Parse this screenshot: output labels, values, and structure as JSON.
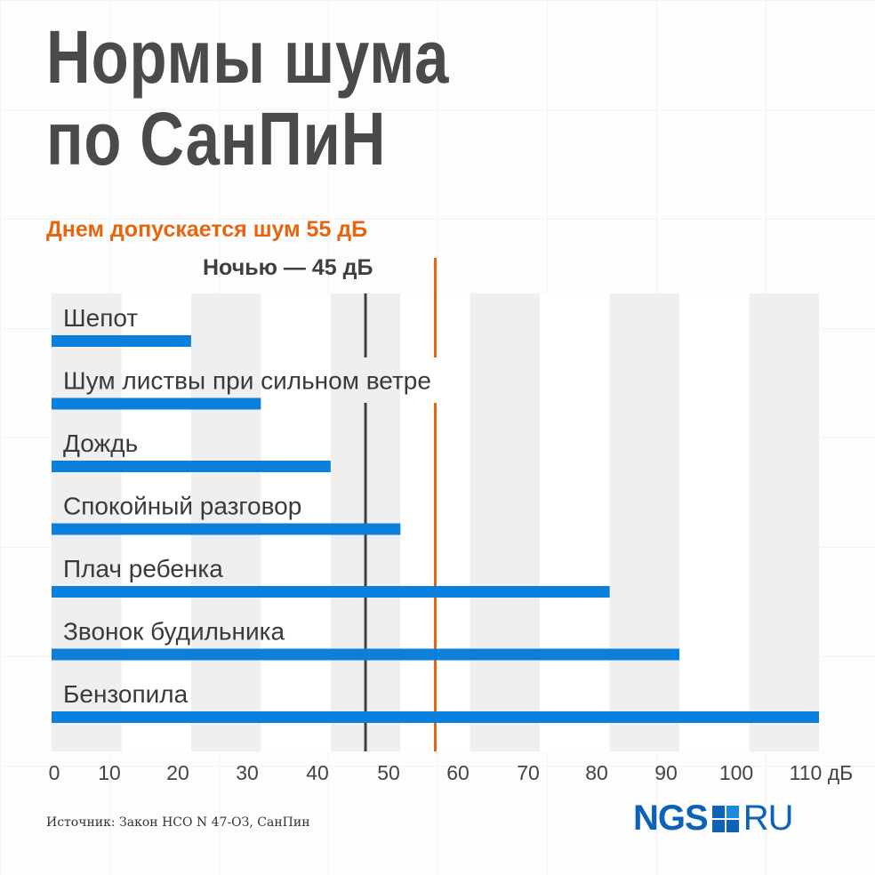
{
  "title_lines": [
    "Нормы шума",
    "по СанПиН"
  ],
  "day_note": "Днем допускается шум 55 дБ",
  "night_note": "Ночью — 45 дБ",
  "source": "Источник: Закон НСО N 47-ОЗ, СанПин",
  "logo": {
    "main": "NGS",
    "suffix": "RU"
  },
  "colors": {
    "bar": "#0a7fdc",
    "day_line": "#e8650f",
    "night_line": "#3f3f3f",
    "band": "#efefef",
    "title": "#4a4a4a"
  },
  "chart_data": {
    "type": "bar",
    "orientation": "horizontal",
    "categories": [
      "Шепот",
      "Шум листвы при сильном ветре",
      "Дождь",
      "Спокойный разговор",
      "Плач ребенка",
      "Звонок будильника",
      "Бензопила"
    ],
    "values": [
      20,
      30,
      40,
      50,
      80,
      90,
      110
    ],
    "xlim": [
      0,
      110
    ],
    "xticks": [
      0,
      10,
      20,
      30,
      40,
      50,
      60,
      70,
      80,
      90,
      100,
      110
    ],
    "xunit": "дБ",
    "reference_lines": [
      {
        "label": "Ночью — 45 дБ",
        "value": 45,
        "color": "#3f3f3f"
      },
      {
        "label": "Днем допускается шум 55 дБ",
        "value": 55,
        "color": "#e8650f"
      }
    ],
    "grid": "alternating bands"
  }
}
